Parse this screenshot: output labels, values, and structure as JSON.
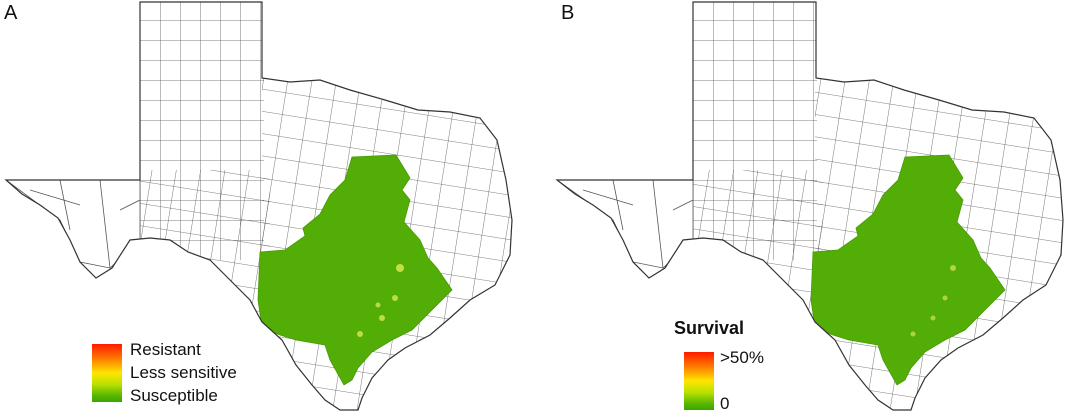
{
  "panels": [
    {
      "label": "A",
      "legend": {
        "title": "",
        "items": [
          "Resistant",
          "Less sensitive",
          "Susceptible"
        ]
      }
    },
    {
      "label": "B",
      "legend": {
        "title": "Survival",
        "items": [
          ">50%",
          "0"
        ]
      }
    }
  ],
  "colors": {
    "region_fill": "#52ad06",
    "outline": "#444444",
    "legend_high": "#ff1a00",
    "legend_mid": "#ffe600",
    "legend_low": "#3aa500"
  }
}
